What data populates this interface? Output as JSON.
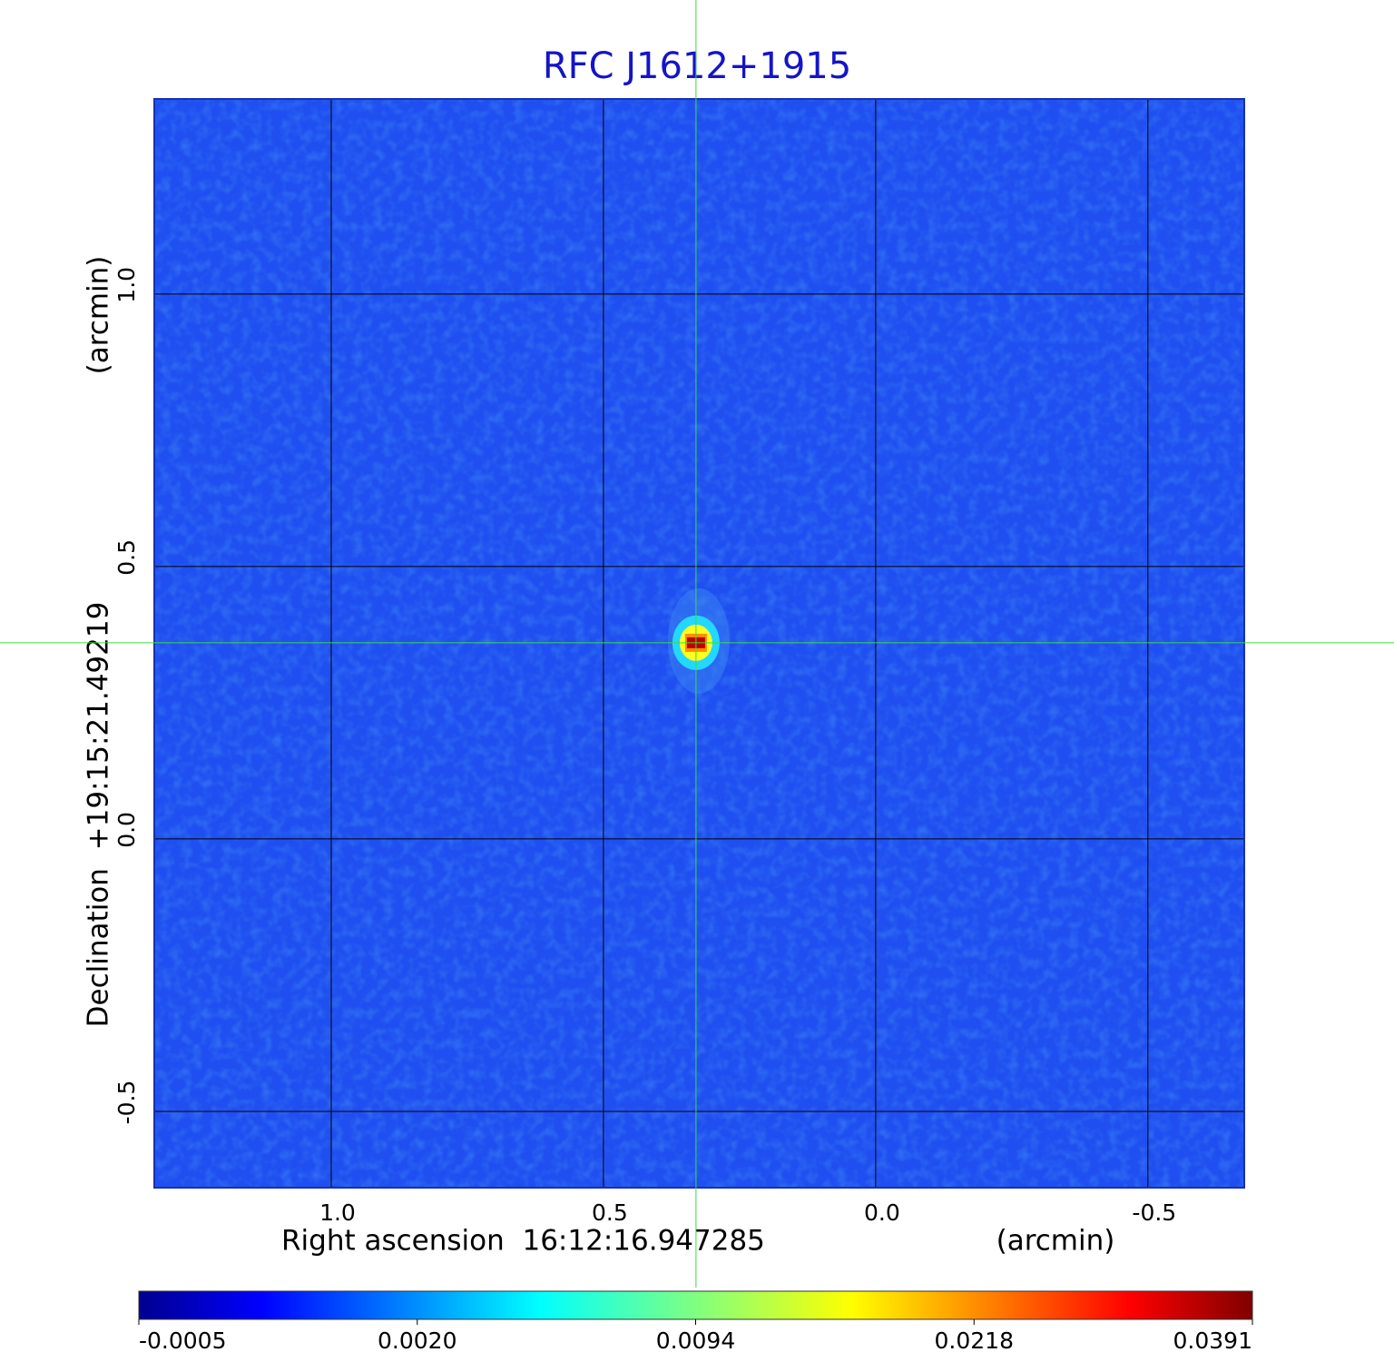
{
  "chart_data": {
    "type": "image",
    "title": "RFC J1612+1915",
    "xlabel": "Right ascension  16:12:16.947285",
    "xunit": "(arcmin)",
    "ylabel": "Declination  +19:15:21.49219",
    "yunit": "(arcmin)",
    "xlim": [
      1.325,
      -0.677
    ],
    "ylim": [
      -0.64,
      1.358
    ],
    "xticks": [
      {
        "value": 1.0,
        "label": "1.0"
      },
      0.5,
      {
        "value": 0.0,
        "label": "0.0"
      },
      -0.5
    ],
    "yticks": [
      {
        "value": 1.0,
        "label": "1.0"
      },
      0.5,
      {
        "value": 0.0,
        "label": "0.0"
      },
      -0.5
    ],
    "grid": true,
    "colormap": "jet",
    "crosshair": {
      "x": 0.33,
      "y": 0.36
    },
    "peak": {
      "x": 0.33,
      "y": 0.36,
      "value": 0.0391
    },
    "colorbar_ticks": [
      -0.0005,
      {
        "value": 0.002,
        "label": "0.0020"
      },
      0.0094,
      0.0218,
      0.0391
    ]
  }
}
